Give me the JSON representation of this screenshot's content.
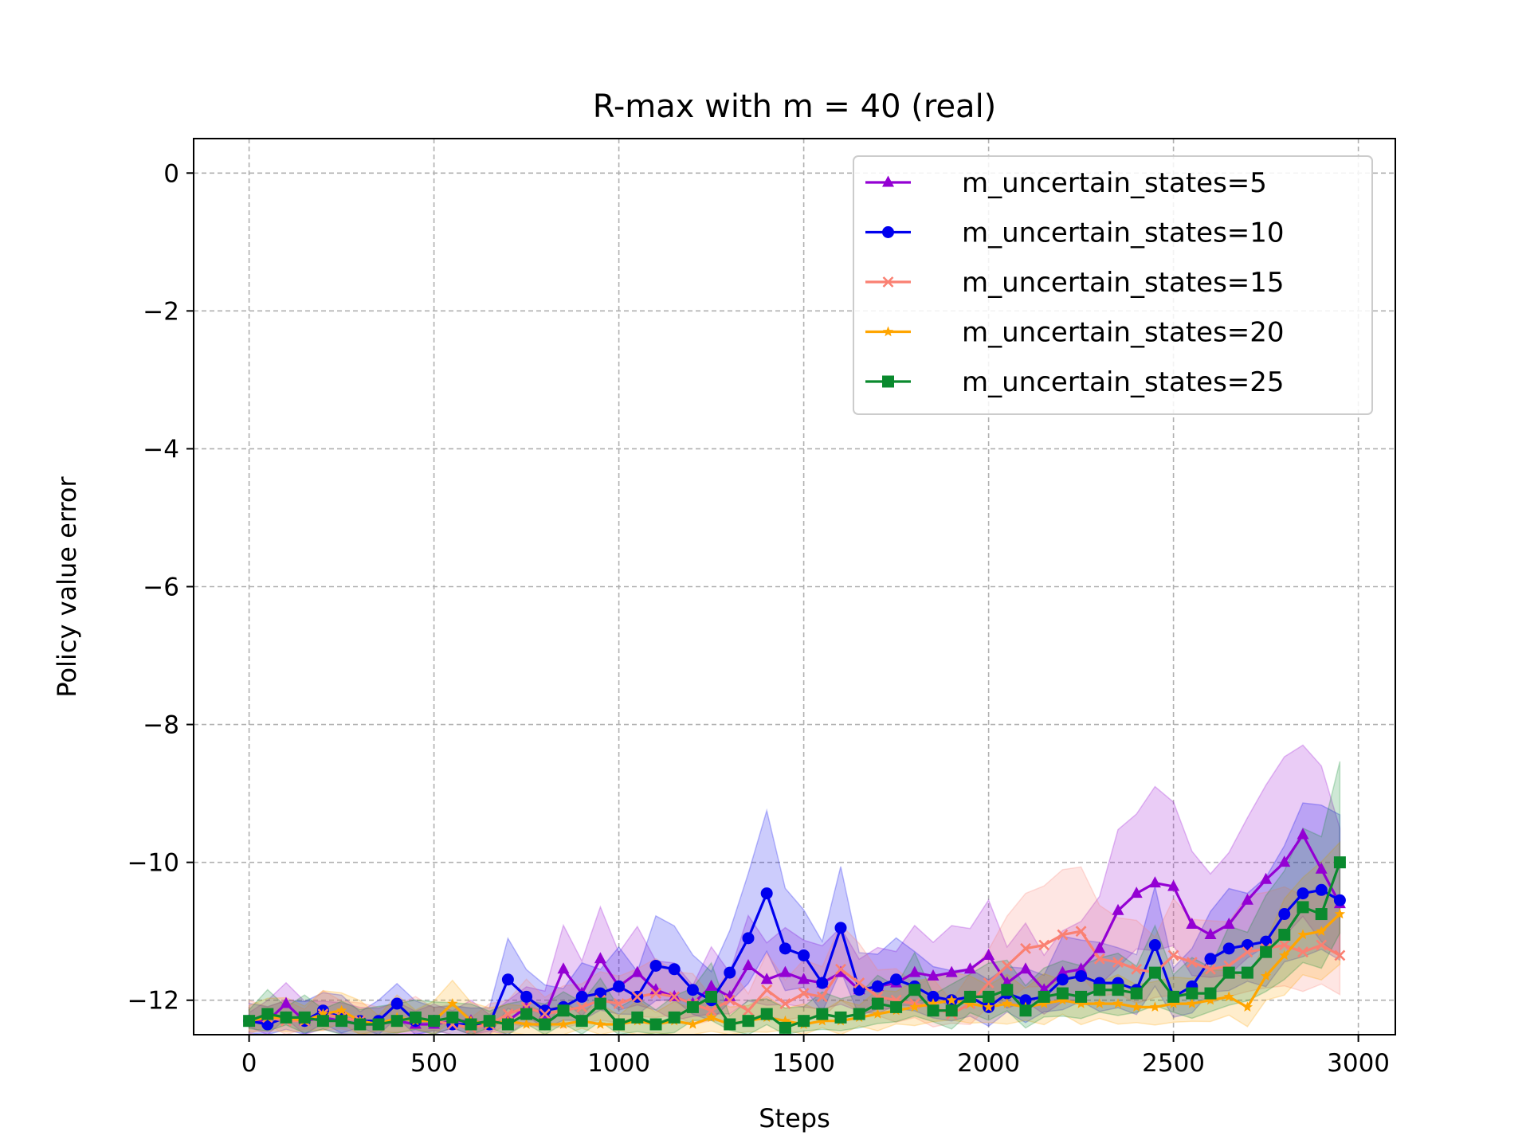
{
  "chart_data": {
    "type": "line",
    "title": "R-max with m = 40 (real)",
    "xlabel": "Steps",
    "ylabel": "Policy value error",
    "xlim": [
      -150,
      3100
    ],
    "ylim": [
      -12.5,
      0.5
    ],
    "xticks": [
      0,
      500,
      1000,
      1500,
      2000,
      2500,
      3000
    ],
    "yticks": [
      0,
      -2,
      -4,
      -6,
      -8,
      -10,
      -12
    ],
    "xtick_labels": [
      "0",
      "500",
      "1000",
      "1500",
      "2000",
      "2500",
      "3000"
    ],
    "ytick_labels": [
      "0",
      "−2",
      "−4",
      "−6",
      "−8",
      "−10",
      "−12"
    ],
    "grid": true,
    "legend_position": "upper right",
    "x": [
      0,
      50,
      100,
      150,
      200,
      250,
      300,
      350,
      400,
      450,
      500,
      550,
      600,
      650,
      700,
      750,
      800,
      850,
      900,
      950,
      1000,
      1050,
      1100,
      1150,
      1200,
      1250,
      1300,
      1350,
      1400,
      1450,
      1500,
      1550,
      1600,
      1650,
      1700,
      1750,
      1800,
      1850,
      1900,
      1950,
      2000,
      2050,
      2100,
      2150,
      2200,
      2250,
      2300,
      2350,
      2400,
      2450,
      2500,
      2550,
      2600,
      2650,
      2700,
      2750,
      2800,
      2850,
      2900,
      2950
    ],
    "series": [
      {
        "name": "m_uncertain_states=5",
        "color": "#9400d3",
        "marker": "triangle",
        "values": [
          -12.3,
          -12.3,
          -12.05,
          -12.3,
          -12.25,
          -12.3,
          -12.35,
          -12.35,
          -12.3,
          -12.35,
          -12.35,
          -12.3,
          -12.3,
          -12.35,
          -12.3,
          -12.1,
          -12.2,
          -11.55,
          -11.9,
          -11.4,
          -11.8,
          -11.6,
          -11.85,
          -11.95,
          -12.05,
          -11.8,
          -11.95,
          -11.5,
          -11.7,
          -11.6,
          -11.7,
          -11.75,
          -11.6,
          -11.85,
          -11.8,
          -11.75,
          -11.6,
          -11.65,
          -11.6,
          -11.55,
          -11.35,
          -11.75,
          -11.55,
          -11.85,
          -11.6,
          -11.55,
          -11.25,
          -10.7,
          -10.45,
          -10.3,
          -10.35,
          -10.9,
          -11.05,
          -10.9,
          -10.55,
          -10.25,
          -10.0,
          -9.6,
          -10.1,
          -10.6
        ]
      },
      {
        "name": "m_uncertain_states=10",
        "color": "#0000ee",
        "marker": "circle",
        "values": [
          -12.3,
          -12.35,
          -12.25,
          -12.3,
          -12.15,
          -12.25,
          -12.3,
          -12.3,
          -12.05,
          -12.3,
          -12.3,
          -12.35,
          -12.35,
          -12.35,
          -11.7,
          -11.95,
          -12.15,
          -12.1,
          -11.95,
          -11.9,
          -11.8,
          -11.95,
          -11.5,
          -11.55,
          -11.85,
          -12.0,
          -11.6,
          -11.1,
          -10.45,
          -11.25,
          -11.35,
          -11.75,
          -10.95,
          -11.85,
          -11.8,
          -11.7,
          -11.8,
          -11.95,
          -12.0,
          -11.95,
          -12.1,
          -11.9,
          -12.0,
          -11.95,
          -11.7,
          -11.65,
          -11.75,
          -11.75,
          -11.85,
          -11.2,
          -11.95,
          -11.8,
          -11.4,
          -11.25,
          -11.2,
          -11.15,
          -10.75,
          -10.45,
          -10.4,
          -10.55
        ]
      },
      {
        "name": "m_uncertain_states=15",
        "color": "#fa8072",
        "marker": "x",
        "values": [
          -12.3,
          -12.25,
          -12.3,
          -12.3,
          -12.2,
          -12.25,
          -12.3,
          -12.35,
          -12.3,
          -12.25,
          -12.3,
          -12.35,
          -12.4,
          -12.35,
          -12.2,
          -12.1,
          -12.2,
          -12.15,
          -12.1,
          -12.0,
          -12.05,
          -11.95,
          -11.9,
          -11.95,
          -12.05,
          -12.15,
          -12.0,
          -12.15,
          -11.85,
          -12.05,
          -11.9,
          -11.95,
          -11.55,
          -11.75,
          -11.95,
          -12.0,
          -12.05,
          -12.1,
          -12.2,
          -12.05,
          -11.75,
          -11.5,
          -11.25,
          -11.2,
          -11.05,
          -11.0,
          -11.4,
          -11.45,
          -11.55,
          -11.6,
          -11.35,
          -11.45,
          -11.55,
          -11.5,
          -11.3,
          -11.25,
          -11.2,
          -11.3,
          -11.2,
          -11.35
        ]
      },
      {
        "name": "m_uncertain_states=20",
        "color": "#ffa500",
        "marker": "star",
        "values": [
          -12.3,
          -12.25,
          -12.25,
          -12.3,
          -12.2,
          -12.15,
          -12.3,
          -12.35,
          -12.25,
          -12.3,
          -12.3,
          -12.05,
          -12.3,
          -12.35,
          -12.3,
          -12.35,
          -12.35,
          -12.35,
          -12.3,
          -12.35,
          -12.35,
          -12.3,
          -12.35,
          -12.3,
          -12.35,
          -12.25,
          -12.35,
          -12.3,
          -12.25,
          -12.3,
          -12.35,
          -12.3,
          -12.3,
          -12.25,
          -12.2,
          -12.15,
          -12.1,
          -12.05,
          -12.0,
          -12.05,
          -12.1,
          -12.05,
          -12.1,
          -12.05,
          -12.0,
          -12.05,
          -12.05,
          -12.05,
          -12.1,
          -12.1,
          -12.05,
          -12.05,
          -12.0,
          -11.95,
          -12.1,
          -11.65,
          -11.35,
          -11.05,
          -11.0,
          -10.75
        ]
      },
      {
        "name": "m_uncertain_states=25",
        "color": "#0a8a2e",
        "marker": "square",
        "values": [
          -12.3,
          -12.2,
          -12.25,
          -12.25,
          -12.3,
          -12.3,
          -12.35,
          -12.35,
          -12.3,
          -12.25,
          -12.3,
          -12.25,
          -12.35,
          -12.3,
          -12.35,
          -12.2,
          -12.35,
          -12.15,
          -12.3,
          -12.05,
          -12.35,
          -12.25,
          -12.35,
          -12.25,
          -12.1,
          -11.95,
          -12.35,
          -12.3,
          -12.2,
          -12.4,
          -12.3,
          -12.2,
          -12.25,
          -12.2,
          -12.05,
          -12.1,
          -11.85,
          -12.15,
          -12.15,
          -11.95,
          -11.95,
          -11.85,
          -12.15,
          -11.95,
          -11.9,
          -11.95,
          -11.85,
          -11.85,
          -11.9,
          -11.6,
          -11.95,
          -11.9,
          -11.9,
          -11.6,
          -11.6,
          -11.3,
          -11.05,
          -10.65,
          -10.75,
          -10.0
        ]
      }
    ]
  }
}
